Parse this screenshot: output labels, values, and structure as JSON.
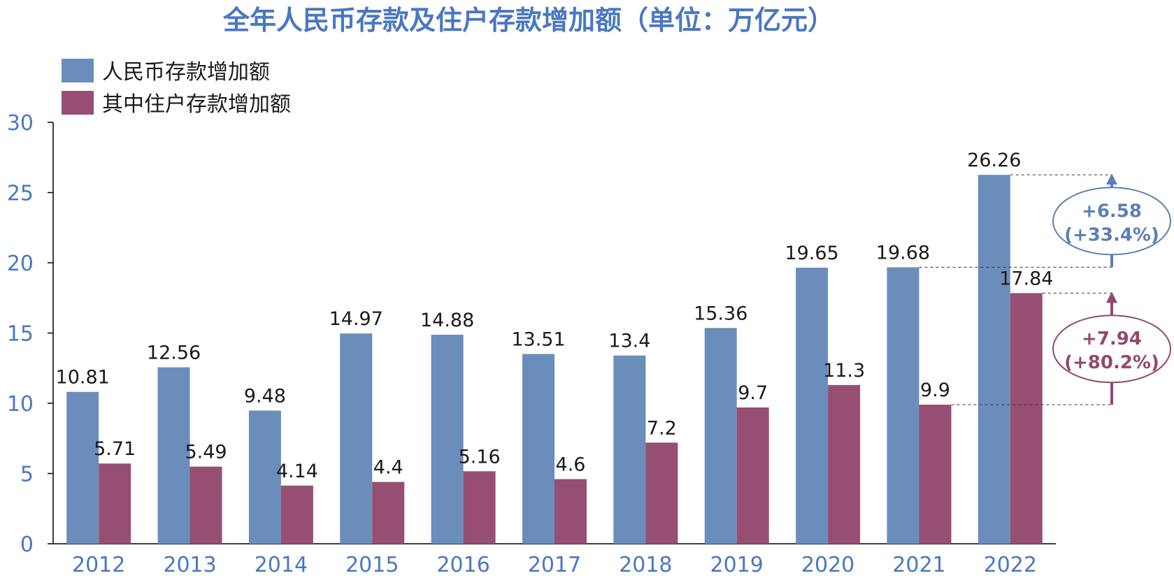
{
  "chart_data": {
    "type": "bar",
    "title": "全年人民币存款及住户存款增加额（单位：万亿元）",
    "categories": [
      "2012",
      "2013",
      "2014",
      "2015",
      "2016",
      "2017",
      "2018",
      "2019",
      "2020",
      "2021",
      "2022"
    ],
    "series": [
      {
        "name": "人民币存款增加额",
        "color": "#6b8dbb",
        "values": [
          10.81,
          12.56,
          9.48,
          14.97,
          14.88,
          13.51,
          13.4,
          15.36,
          19.65,
          19.68,
          26.26
        ],
        "labels": [
          "10.81",
          "12.56",
          "9.48",
          "14.97",
          "14.88",
          "13.51",
          "13.4",
          "15.36",
          "19.65",
          "19.68",
          "26.26"
        ]
      },
      {
        "name": "其中住户存款增加额",
        "color": "#964f72",
        "values": [
          5.71,
          5.49,
          4.14,
          4.4,
          5.16,
          4.6,
          7.2,
          9.7,
          11.3,
          9.9,
          17.84
        ],
        "labels": [
          "5.71",
          "5.49",
          "4.14",
          "4.4",
          "5.16",
          "4.6",
          "7.2",
          "9.7",
          "11.3",
          "9.9",
          "17.84"
        ]
      }
    ],
    "ylim": [
      0,
      30
    ],
    "yticks": [
      "0",
      "5",
      "10",
      "15",
      "20",
      "25",
      "30"
    ],
    "legend_position": "top-left",
    "grid": false,
    "annotations": [
      {
        "series": 0,
        "from": 19.68,
        "to": 26.26,
        "line1": "+6.58",
        "line2": "(+33.4%)",
        "color": "#5b7fb5"
      },
      {
        "series": 1,
        "from": 9.9,
        "to": 17.84,
        "line1": "+7.94",
        "line2": "(+80.2%)",
        "color": "#96476c"
      }
    ]
  }
}
